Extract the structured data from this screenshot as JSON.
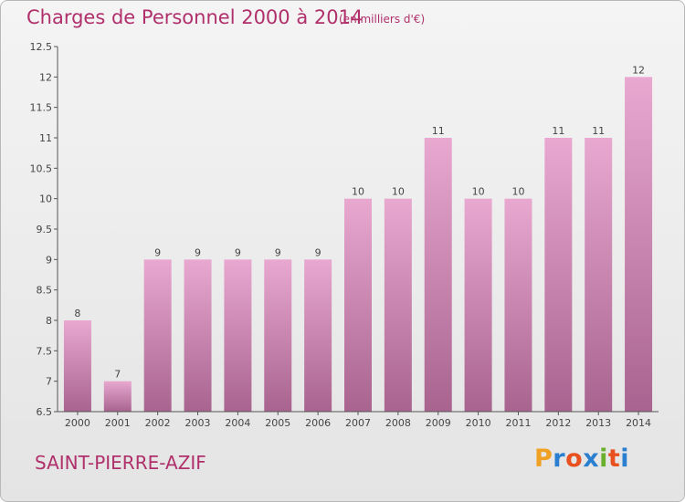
{
  "title": "Charges de Personnel 2000 à 2014",
  "subtitle": "(en milliers d'€)",
  "commune": "SAINT-PIERRE-AZIF",
  "logo": {
    "letters": [
      "P",
      "r",
      "o",
      "x",
      "i",
      "t",
      "i"
    ],
    "colors": [
      "#f0a022",
      "#2a7fd0",
      "#e8501f",
      "#2a7fd0",
      "#6ab02c",
      "#e8501f",
      "#2a7fd0"
    ]
  },
  "colors": {
    "bar_top": "#e8a8d0",
    "bar_bottom": "#a8648f",
    "text_accent": "#b0306b"
  },
  "chart_data": {
    "type": "bar",
    "categories": [
      "2000",
      "2001",
      "2002",
      "2003",
      "2004",
      "2005",
      "2006",
      "2007",
      "2008",
      "2009",
      "2010",
      "2011",
      "2012",
      "2013",
      "2014"
    ],
    "values": [
      8,
      7,
      9,
      9,
      9,
      9,
      9,
      10,
      10,
      11,
      10,
      10,
      11,
      11,
      12
    ],
    "data_labels": [
      "8",
      "7",
      "9",
      "9",
      "9",
      "9",
      "9",
      "10",
      "10",
      "11",
      "10",
      "10",
      "11",
      "11",
      "12"
    ],
    "ylim": [
      6.5,
      12.5
    ],
    "yticks": [
      6.5,
      7,
      7.5,
      8,
      8.5,
      9,
      9.5,
      10,
      10.5,
      11,
      11.5,
      12,
      12.5
    ],
    "ytick_labels": [
      "6.5",
      "7",
      "7.5",
      "8",
      "8.5",
      "9",
      "9.5",
      "10",
      "10.5",
      "11",
      "11.5",
      "12",
      "12.5"
    ],
    "grid": false,
    "xlabel": "",
    "ylabel": ""
  }
}
